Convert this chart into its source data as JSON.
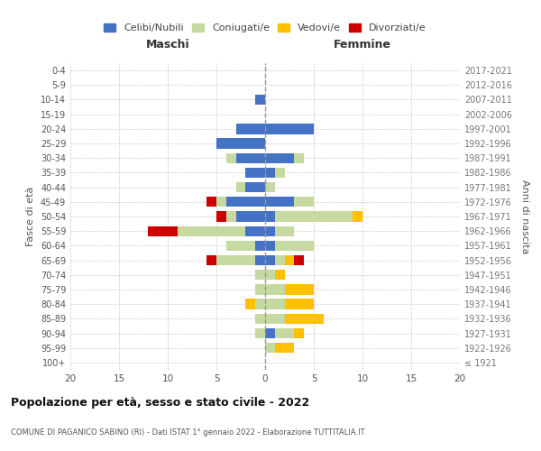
{
  "age_groups": [
    "100+",
    "95-99",
    "90-94",
    "85-89",
    "80-84",
    "75-79",
    "70-74",
    "65-69",
    "60-64",
    "55-59",
    "50-54",
    "45-49",
    "40-44",
    "35-39",
    "30-34",
    "25-29",
    "20-24",
    "15-19",
    "10-14",
    "5-9",
    "0-4"
  ],
  "birth_years": [
    "≤ 1921",
    "1922-1926",
    "1927-1931",
    "1932-1936",
    "1937-1941",
    "1942-1946",
    "1947-1951",
    "1952-1956",
    "1957-1961",
    "1962-1966",
    "1967-1971",
    "1972-1976",
    "1977-1981",
    "1982-1986",
    "1987-1991",
    "1992-1996",
    "1997-2001",
    "2002-2006",
    "2007-2011",
    "2012-2016",
    "2017-2021"
  ],
  "maschi": {
    "celibi": [
      0,
      0,
      0,
      0,
      0,
      0,
      0,
      1,
      1,
      2,
      3,
      4,
      2,
      2,
      3,
      5,
      3,
      0,
      1,
      0,
      0
    ],
    "coniugati": [
      0,
      0,
      1,
      1,
      1,
      1,
      1,
      4,
      3,
      7,
      1,
      1,
      1,
      0,
      1,
      0,
      0,
      0,
      0,
      0,
      0
    ],
    "vedovi": [
      0,
      0,
      0,
      0,
      1,
      0,
      0,
      0,
      0,
      0,
      0,
      0,
      0,
      0,
      0,
      0,
      0,
      0,
      0,
      0,
      0
    ],
    "divorziati": [
      0,
      0,
      0,
      0,
      0,
      0,
      0,
      1,
      0,
      3,
      1,
      1,
      0,
      0,
      0,
      0,
      0,
      0,
      0,
      0,
      0
    ]
  },
  "femmine": {
    "nubili": [
      0,
      0,
      1,
      0,
      0,
      0,
      0,
      1,
      1,
      1,
      1,
      3,
      0,
      1,
      3,
      0,
      5,
      0,
      0,
      0,
      0
    ],
    "coniugate": [
      0,
      1,
      2,
      2,
      2,
      2,
      1,
      1,
      4,
      2,
      8,
      2,
      1,
      1,
      1,
      0,
      0,
      0,
      0,
      0,
      0
    ],
    "vedove": [
      0,
      2,
      1,
      4,
      3,
      3,
      1,
      1,
      0,
      0,
      1,
      0,
      0,
      0,
      0,
      0,
      0,
      0,
      0,
      0,
      0
    ],
    "divorziate": [
      0,
      0,
      0,
      0,
      0,
      0,
      0,
      1,
      0,
      0,
      0,
      0,
      0,
      0,
      0,
      0,
      0,
      0,
      0,
      0,
      0
    ]
  },
  "colors": {
    "celibi": "#4472c4",
    "coniugati": "#c5d9a0",
    "vedovi": "#ffc000",
    "divorziati": "#cc0000"
  },
  "xlim": 20,
  "title": "Popolazione per età, sesso e stato civile - 2022",
  "subtitle": "COMUNE DI PAGANICO SABINO (RI) - Dati ISTAT 1° gennaio 2022 - Elaborazione TUTTITALIA.IT",
  "ylabel_left": "Fasce di età",
  "ylabel_right": "Anni di nascita",
  "xlabel_maschi": "Maschi",
  "xlabel_femmine": "Femmine",
  "legend_labels": [
    "Celibi/Nubili",
    "Coniugati/e",
    "Vedovi/e",
    "Divorziati/e"
  ],
  "bg_color": "#ffffff",
  "grid_color": "#cccccc"
}
